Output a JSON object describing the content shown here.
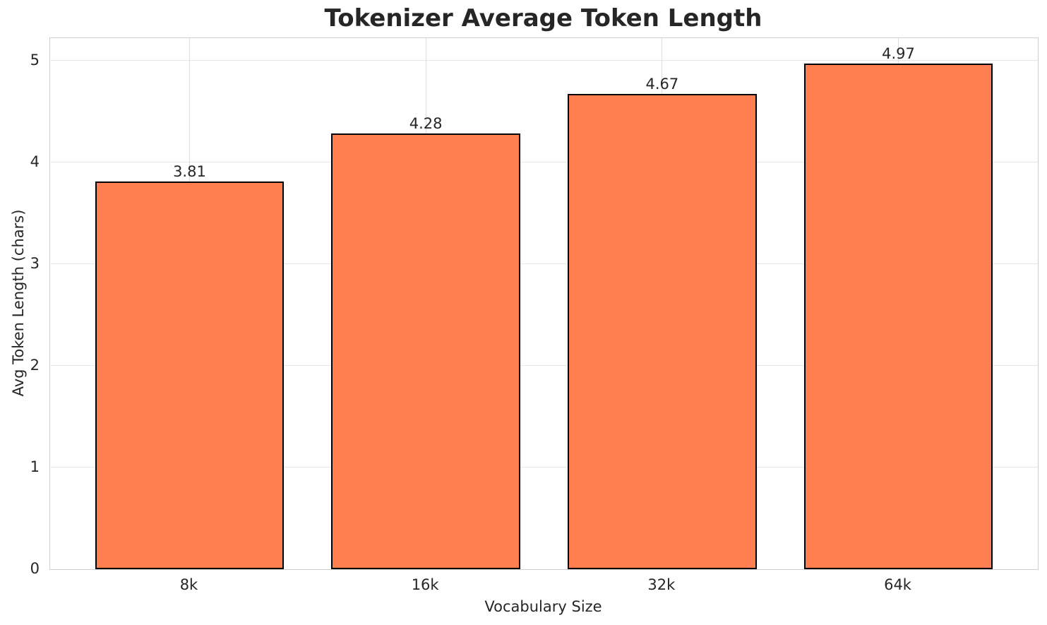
{
  "chart_data": {
    "type": "bar",
    "title": "Tokenizer Average Token Length",
    "xlabel": "Vocabulary Size",
    "ylabel": "Avg Token Length (chars)",
    "categories": [
      "8k",
      "16k",
      "32k",
      "64k"
    ],
    "values": [
      3.81,
      4.28,
      4.67,
      4.97
    ],
    "value_labels": [
      "3.81",
      "4.28",
      "4.67",
      "4.97"
    ],
    "yticks": [
      0,
      1,
      2,
      3,
      4,
      5
    ],
    "ytick_labels": [
      "0",
      "1",
      "2",
      "3",
      "4",
      "5"
    ],
    "ylim": [
      0,
      5.22
    ],
    "grid": true,
    "legend": "none",
    "colors": {
      "bar_fill": "#ff7f50",
      "bar_edge": "#000000",
      "grid_line": "#e7e7e7",
      "spine": "#d0d0d0",
      "text": "#262626",
      "background": "#ffffff"
    }
  }
}
